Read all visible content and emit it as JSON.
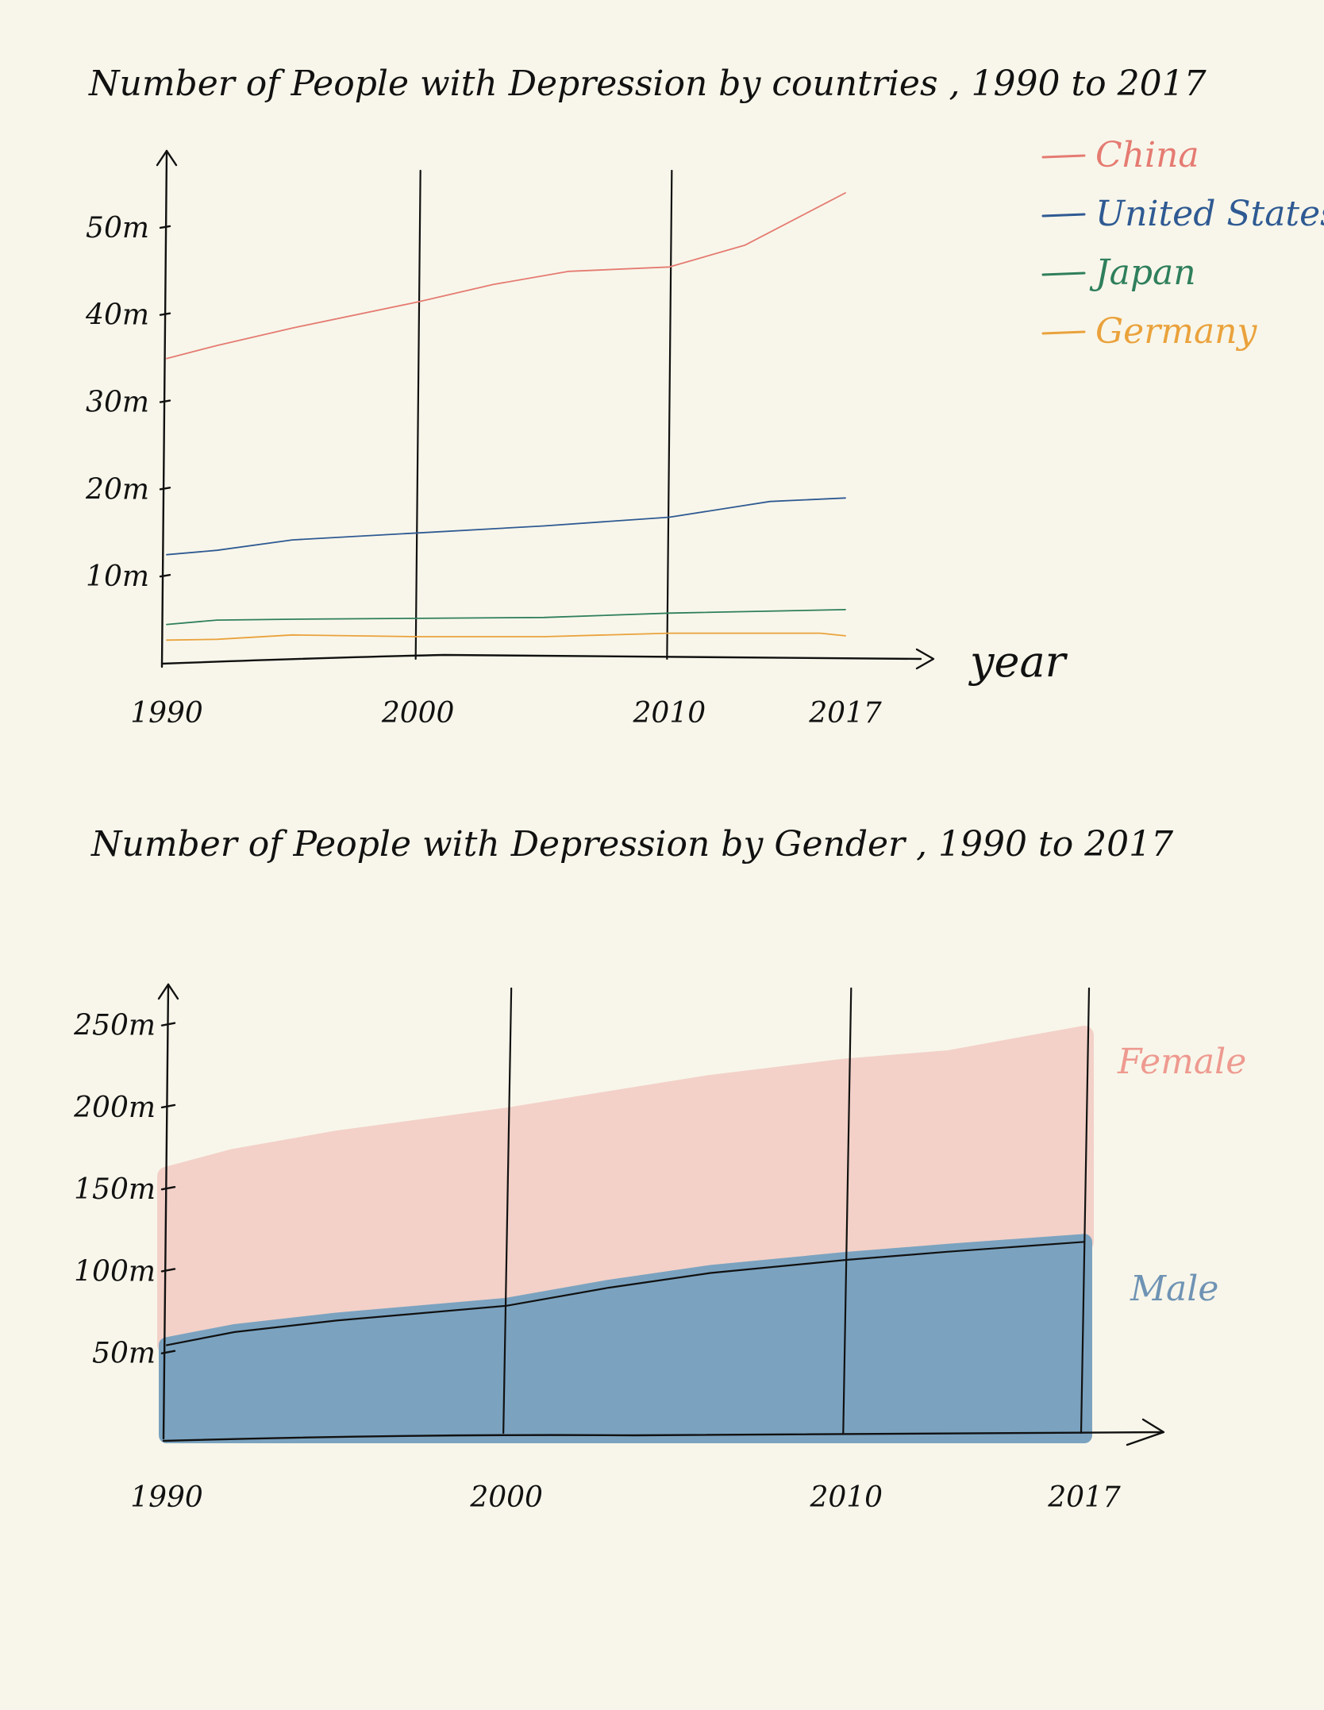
{
  "chart_data": [
    {
      "type": "line",
      "title": "Number of People with Depression by countries , 1990 to 2017",
      "xlabel": "year",
      "ylabel": "",
      "x_ticks": [
        "1990",
        "2000",
        "2010",
        "2017"
      ],
      "y_ticks": [
        "10m",
        "20m",
        "30m",
        "40m",
        "50m"
      ],
      "xlim": [
        1990,
        2017
      ],
      "ylim": [
        0,
        55
      ],
      "grid": false,
      "vertical_lines": [
        2000,
        2010
      ],
      "legend": "top-right",
      "series": [
        {
          "name": "China",
          "color": "#e57b72",
          "x": [
            1990,
            1992,
            1995,
            2000,
            2003,
            2006,
            2010,
            2013,
            2017
          ],
          "values": [
            35,
            36.5,
            38.5,
            41.5,
            43.5,
            45,
            45.5,
            48,
            54
          ]
        },
        {
          "name": "United States",
          "color": "#2f5a93",
          "x": [
            1990,
            1992,
            1995,
            2000,
            2005,
            2010,
            2014,
            2017
          ],
          "values": [
            12.5,
            13,
            14.2,
            15,
            15.8,
            16.8,
            18.6,
            19
          ]
        },
        {
          "name": "Japan",
          "color": "#2f7f5c",
          "x": [
            1990,
            1992,
            1995,
            2000,
            2005,
            2010,
            2017
          ],
          "values": [
            4.5,
            5,
            5.1,
            5.2,
            5.3,
            5.8,
            6.2
          ]
        },
        {
          "name": "Germany",
          "color": "#eaa23c",
          "x": [
            1990,
            1992,
            1995,
            2000,
            2005,
            2010,
            2016,
            2017
          ],
          "values": [
            2.7,
            2.8,
            3.3,
            3.1,
            3.1,
            3.5,
            3.5,
            3.2
          ]
        }
      ]
    },
    {
      "type": "area",
      "title": "Number of People with Depression by Gender , 1990 to 2017",
      "xlabel": "",
      "ylabel": "",
      "x_ticks": [
        "1990",
        "2000",
        "2010",
        "2017"
      ],
      "y_ticks": [
        "50m",
        "100m",
        "150m",
        "200m",
        "250m"
      ],
      "xlim": [
        1990,
        2017
      ],
      "ylim": [
        0,
        275
      ],
      "grid": false,
      "vertical_lines": [
        2000,
        2010,
        2017
      ],
      "legend": "right",
      "stacked": true,
      "series": [
        {
          "name": "Male",
          "color": "#7ba3c0",
          "x": [
            1990,
            1992,
            1995,
            2000,
            2003,
            2006,
            2010,
            2013,
            2017
          ],
          "values": [
            55,
            63,
            70,
            79,
            90,
            99,
            107,
            112,
            118
          ]
        },
        {
          "name": "Female",
          "color": "#f3d1c8",
          "x": [
            1990,
            1992,
            1995,
            2000,
            2003,
            2006,
            2010,
            2013,
            2017
          ],
          "values": [
            103,
            106,
            110,
            115,
            114,
            115,
            117,
            117,
            126
          ]
        }
      ]
    }
  ]
}
